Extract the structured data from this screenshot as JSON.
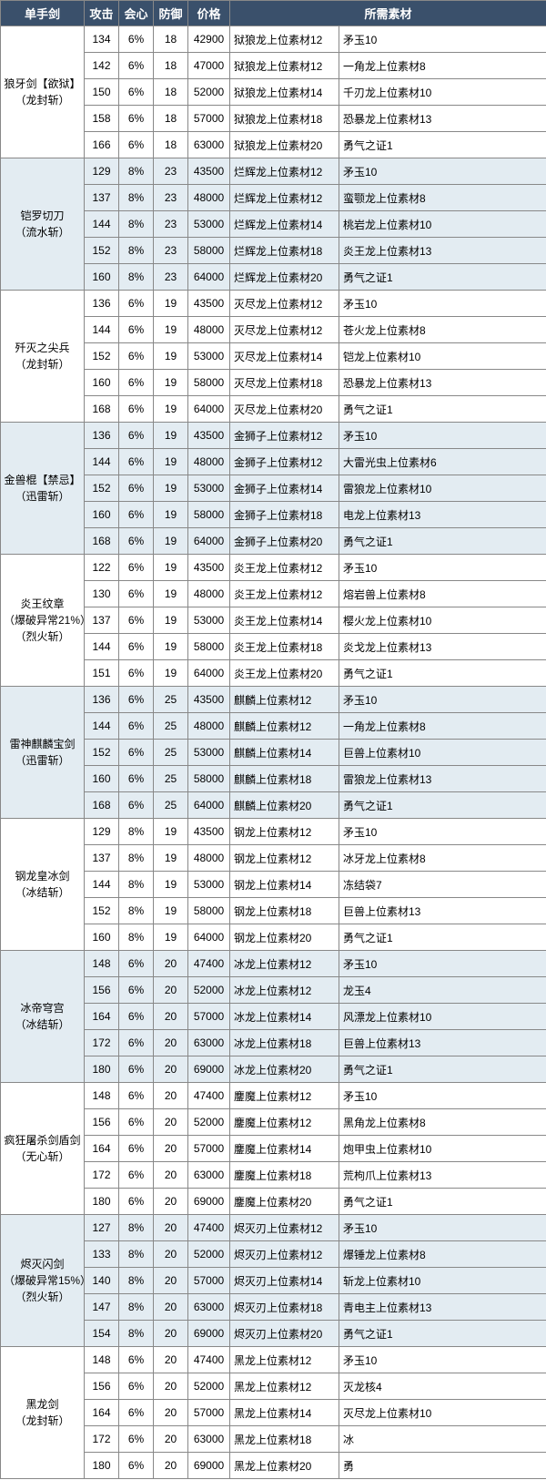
{
  "headers": [
    "单手剑",
    "攻击",
    "会心",
    "防御",
    "价格",
    "所需素材"
  ],
  "colors": {
    "header_bg": "#3a506b",
    "header_fg": "#ffffff",
    "shade_bg": "#e3ecf2",
    "border": "#888888"
  },
  "weapons": [
    {
      "name": [
        "狼牙剑【欲狱】",
        "（龙封斩）"
      ],
      "shade": false,
      "rows": [
        {
          "atk": 134,
          "crit": "6%",
          "def": 18,
          "price": 42900,
          "m1": "狱狼龙上位素材12",
          "m2": "矛玉10"
        },
        {
          "atk": 142,
          "crit": "6%",
          "def": 18,
          "price": 47000,
          "m1": "狱狼龙上位素材12",
          "m2": "一角龙上位素材8"
        },
        {
          "atk": 150,
          "crit": "6%",
          "def": 18,
          "price": 52000,
          "m1": "狱狼龙上位素材14",
          "m2": "千刃龙上位素材10"
        },
        {
          "atk": 158,
          "crit": "6%",
          "def": 18,
          "price": 57000,
          "m1": "狱狼龙上位素材18",
          "m2": "恐暴龙上位素材13"
        },
        {
          "atk": 166,
          "crit": "6%",
          "def": 18,
          "price": 63000,
          "m1": "狱狼龙上位素材20",
          "m2": "勇气之证1"
        }
      ]
    },
    {
      "name": [
        "铠罗切刀",
        "（流水斩）"
      ],
      "shade": true,
      "rows": [
        {
          "atk": 129,
          "crit": "8%",
          "def": 23,
          "price": 43500,
          "m1": "烂辉龙上位素材12",
          "m2": "矛玉10"
        },
        {
          "atk": 137,
          "crit": "8%",
          "def": 23,
          "price": 48000,
          "m1": "烂辉龙上位素材12",
          "m2": "蛮颚龙上位素材8"
        },
        {
          "atk": 144,
          "crit": "8%",
          "def": 23,
          "price": 53000,
          "m1": "烂辉龙上位素材14",
          "m2": "桃岩龙上位素材10"
        },
        {
          "atk": 152,
          "crit": "8%",
          "def": 23,
          "price": 58000,
          "m1": "烂辉龙上位素材18",
          "m2": "炎王龙上位素材13"
        },
        {
          "atk": 160,
          "crit": "8%",
          "def": 23,
          "price": 64000,
          "m1": "烂辉龙上位素材20",
          "m2": "勇气之证1"
        }
      ]
    },
    {
      "name": [
        "歼灭之尖兵",
        "（龙封斩）"
      ],
      "shade": false,
      "rows": [
        {
          "atk": 136,
          "crit": "6%",
          "def": 19,
          "price": 43500,
          "m1": "灭尽龙上位素材12",
          "m2": "矛玉10"
        },
        {
          "atk": 144,
          "crit": "6%",
          "def": 19,
          "price": 48000,
          "m1": "灭尽龙上位素材12",
          "m2": "苍火龙上位素材8"
        },
        {
          "atk": 152,
          "crit": "6%",
          "def": 19,
          "price": 53000,
          "m1": "灭尽龙上位素材14",
          "m2": "铠龙上位素材10"
        },
        {
          "atk": 160,
          "crit": "6%",
          "def": 19,
          "price": 58000,
          "m1": "灭尽龙上位素材18",
          "m2": "恐暴龙上位素材13"
        },
        {
          "atk": 168,
          "crit": "6%",
          "def": 19,
          "price": 64000,
          "m1": "灭尽龙上位素材20",
          "m2": "勇气之证1"
        }
      ]
    },
    {
      "name": [
        "金兽棍【禁忌】",
        "（迅雷斩）"
      ],
      "shade": true,
      "rows": [
        {
          "atk": 136,
          "crit": "6%",
          "def": 19,
          "price": 43500,
          "m1": "金狮子上位素材12",
          "m2": "矛玉10"
        },
        {
          "atk": 144,
          "crit": "6%",
          "def": 19,
          "price": 48000,
          "m1": "金狮子上位素材12",
          "m2": "大雷光虫上位素材6"
        },
        {
          "atk": 152,
          "crit": "6%",
          "def": 19,
          "price": 53000,
          "m1": "金狮子上位素材14",
          "m2": "雷狼龙上位素材10"
        },
        {
          "atk": 160,
          "crit": "6%",
          "def": 19,
          "price": 58000,
          "m1": "金狮子上位素材18",
          "m2": "电龙上位素材13"
        },
        {
          "atk": 168,
          "crit": "6%",
          "def": 19,
          "price": 64000,
          "m1": "金狮子上位素材20",
          "m2": "勇气之证1"
        }
      ]
    },
    {
      "name": [
        "炎王纹章",
        "（爆破异常21%）",
        "（烈火斩）"
      ],
      "shade": false,
      "rows": [
        {
          "atk": 122,
          "crit": "6%",
          "def": 19,
          "price": 43500,
          "m1": "炎王龙上位素材12",
          "m2": "矛玉10"
        },
        {
          "atk": 130,
          "crit": "6%",
          "def": 19,
          "price": 48000,
          "m1": "炎王龙上位素材12",
          "m2": "熔岩兽上位素材8"
        },
        {
          "atk": 137,
          "crit": "6%",
          "def": 19,
          "price": 53000,
          "m1": "炎王龙上位素材14",
          "m2": "樱火龙上位素材10"
        },
        {
          "atk": 144,
          "crit": "6%",
          "def": 19,
          "price": 58000,
          "m1": "炎王龙上位素材18",
          "m2": "炎戈龙上位素材13"
        },
        {
          "atk": 151,
          "crit": "6%",
          "def": 19,
          "price": 64000,
          "m1": "炎王龙上位素材20",
          "m2": "勇气之证1"
        }
      ]
    },
    {
      "name": [
        "雷神麒麟宝剑",
        "（迅雷斩）"
      ],
      "shade": true,
      "rows": [
        {
          "atk": 136,
          "crit": "6%",
          "def": 25,
          "price": 43500,
          "m1": "麒麟上位素材12",
          "m2": "矛玉10"
        },
        {
          "atk": 144,
          "crit": "6%",
          "def": 25,
          "price": 48000,
          "m1": "麒麟上位素材12",
          "m2": "一角龙上位素材8"
        },
        {
          "atk": 152,
          "crit": "6%",
          "def": 25,
          "price": 53000,
          "m1": "麒麟上位素材14",
          "m2": "巨兽上位素材10"
        },
        {
          "atk": 160,
          "crit": "6%",
          "def": 25,
          "price": 58000,
          "m1": "麒麟上位素材18",
          "m2": "雷狼龙上位素材13"
        },
        {
          "atk": 168,
          "crit": "6%",
          "def": 25,
          "price": 64000,
          "m1": "麒麟上位素材20",
          "m2": "勇气之证1"
        }
      ]
    },
    {
      "name": [
        "钢龙皇冰剑",
        "（冰结斩）"
      ],
      "shade": false,
      "rows": [
        {
          "atk": 129,
          "crit": "8%",
          "def": 19,
          "price": 43500,
          "m1": "钢龙上位素材12",
          "m2": "矛玉10"
        },
        {
          "atk": 137,
          "crit": "8%",
          "def": 19,
          "price": 48000,
          "m1": "钢龙上位素材12",
          "m2": "冰牙龙上位素材8"
        },
        {
          "atk": 144,
          "crit": "8%",
          "def": 19,
          "price": 53000,
          "m1": "钢龙上位素材14",
          "m2": "冻结袋7"
        },
        {
          "atk": 152,
          "crit": "8%",
          "def": 19,
          "price": 58000,
          "m1": "钢龙上位素材18",
          "m2": "巨兽上位素材13"
        },
        {
          "atk": 160,
          "crit": "8%",
          "def": 19,
          "price": 64000,
          "m1": "钢龙上位素材20",
          "m2": "勇气之证1"
        }
      ]
    },
    {
      "name": [
        "冰帝穹宫",
        "（冰结斩）"
      ],
      "shade": true,
      "rows": [
        {
          "atk": 148,
          "crit": "6%",
          "def": 20,
          "price": 47400,
          "m1": "冰龙上位素材12",
          "m2": "矛玉10"
        },
        {
          "atk": 156,
          "crit": "6%",
          "def": 20,
          "price": 52000,
          "m1": "冰龙上位素材12",
          "m2": "龙玉4"
        },
        {
          "atk": 164,
          "crit": "6%",
          "def": 20,
          "price": 57000,
          "m1": "冰龙上位素材14",
          "m2": "风漂龙上位素材10"
        },
        {
          "atk": 172,
          "crit": "6%",
          "def": 20,
          "price": 63000,
          "m1": "冰龙上位素材18",
          "m2": "巨兽上位素材13"
        },
        {
          "atk": 180,
          "crit": "6%",
          "def": 20,
          "price": 69000,
          "m1": "冰龙上位素材20",
          "m2": "勇气之证1"
        }
      ]
    },
    {
      "name": [
        "疯狂屠杀剑盾剑",
        "（无心斩）"
      ],
      "shade": false,
      "rows": [
        {
          "atk": 148,
          "crit": "6%",
          "def": 20,
          "price": 47400,
          "m1": "鏖魔上位素材12",
          "m2": "矛玉10"
        },
        {
          "atk": 156,
          "crit": "6%",
          "def": 20,
          "price": 52000,
          "m1": "鏖魔上位素材12",
          "m2": "黑角龙上位素材8"
        },
        {
          "atk": 164,
          "crit": "6%",
          "def": 20,
          "price": 57000,
          "m1": "鏖魔上位素材14",
          "m2": "炮甲虫上位素材10"
        },
        {
          "atk": 172,
          "crit": "6%",
          "def": 20,
          "price": 63000,
          "m1": "鏖魔上位素材18",
          "m2": "荒枸爪上位素材13"
        },
        {
          "atk": 180,
          "crit": "6%",
          "def": 20,
          "price": 69000,
          "m1": "鏖魔上位素材20",
          "m2": "勇气之证1"
        }
      ]
    },
    {
      "name": [
        "烬灭闪剑",
        "（爆破异常15%）",
        "（烈火斩）"
      ],
      "shade": true,
      "rows": [
        {
          "atk": 127,
          "crit": "8%",
          "def": 20,
          "price": 47400,
          "m1": "烬灭刃上位素材12",
          "m2": "矛玉10"
        },
        {
          "atk": 133,
          "crit": "8%",
          "def": 20,
          "price": 52000,
          "m1": "烬灭刃上位素材12",
          "m2": "爆锤龙上位素材8"
        },
        {
          "atk": 140,
          "crit": "8%",
          "def": 20,
          "price": 57000,
          "m1": "烬灭刃上位素材14",
          "m2": "斩龙上位素材10"
        },
        {
          "atk": 147,
          "crit": "8%",
          "def": 20,
          "price": 63000,
          "m1": "烬灭刃上位素材18",
          "m2": "青电主上位素材13"
        },
        {
          "atk": 154,
          "crit": "8%",
          "def": 20,
          "price": 69000,
          "m1": "烬灭刃上位素材20",
          "m2": "勇气之证1"
        }
      ]
    },
    {
      "name": [
        "黑龙剑",
        "（龙封斩）"
      ],
      "shade": false,
      "rows": [
        {
          "atk": 148,
          "crit": "6%",
          "def": 20,
          "price": 47400,
          "m1": "黑龙上位素材12",
          "m2": "矛玉10"
        },
        {
          "atk": 156,
          "crit": "6%",
          "def": 20,
          "price": 52000,
          "m1": "黑龙上位素材12",
          "m2": "灭龙核4"
        },
        {
          "atk": 164,
          "crit": "6%",
          "def": 20,
          "price": 57000,
          "m1": "黑龙上位素材14",
          "m2": "灭尽龙上位素材10"
        },
        {
          "atk": 172,
          "crit": "6%",
          "def": 20,
          "price": 63000,
          "m1": "黑龙上位素材18",
          "m2": "冰"
        },
        {
          "atk": 180,
          "crit": "6%",
          "def": 20,
          "price": 69000,
          "m1": "黑龙上位素材20",
          "m2": "勇"
        }
      ]
    }
  ]
}
